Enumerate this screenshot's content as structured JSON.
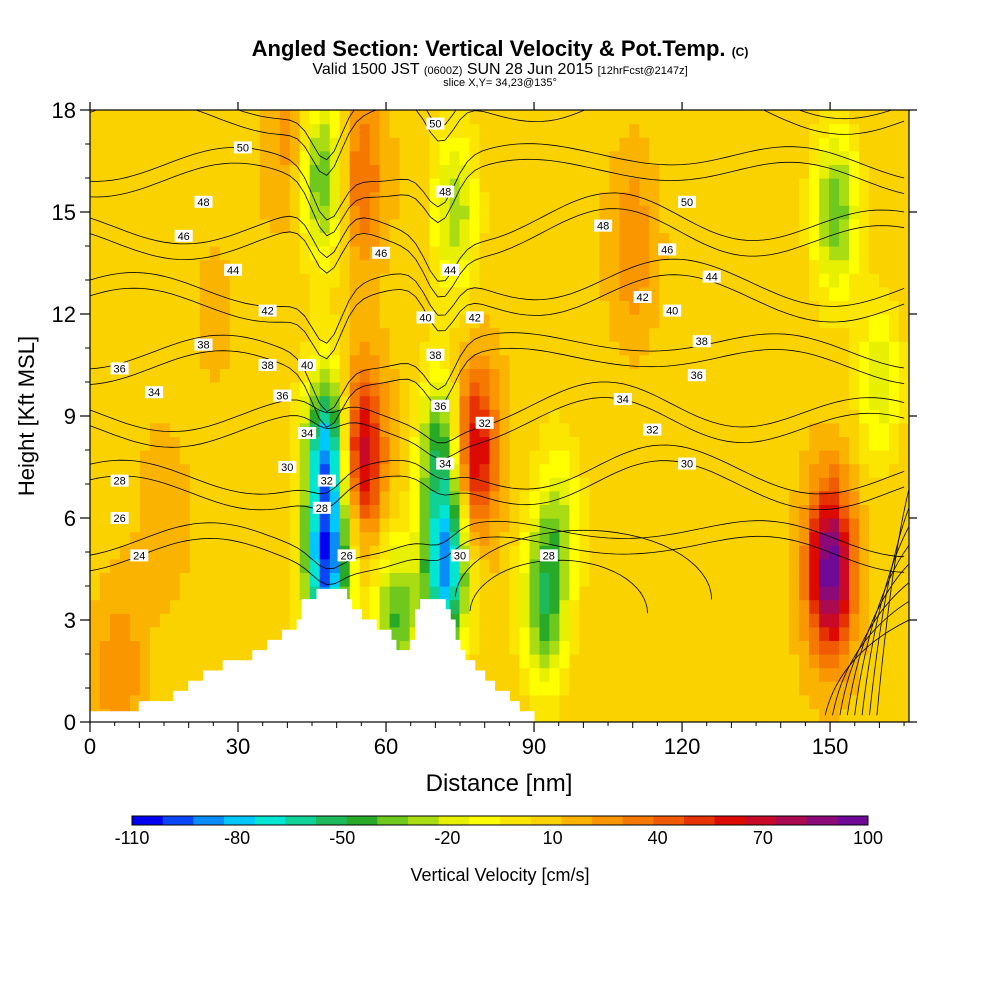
{
  "header": {
    "title": "Angled Section: Vertical Velocity & Pot.Temp.",
    "title_units": "(C)",
    "subtitle_a": "Valid 1500 JST",
    "subtitle_zulu": "(0600Z)",
    "subtitle_b": "SUN 28 Jun 2015",
    "subtitle_fcst": "[12hrFcst@2147z]",
    "slice": "slice X,Y= 34,23@135°"
  },
  "chart_data": {
    "type": "heatmap",
    "title": "Angled Section: Vertical Velocity & Pot.Temp.",
    "xlabel": "Distance [nm]",
    "ylabel": "Height [Kft MSL]",
    "xlim": [
      0,
      166
    ],
    "ylim": [
      0,
      18
    ],
    "x_ticks": [
      "0",
      "30",
      "60",
      "90",
      "120",
      "150"
    ],
    "y_ticks": [
      "0",
      "3",
      "6",
      "9",
      "12",
      "15",
      "18"
    ],
    "colorbar": {
      "label": "Vertical Velocity [cm/s]",
      "tick_labels": [
        "-110",
        "-80",
        "-50",
        "-20",
        "10",
        "40",
        "70",
        "100"
      ],
      "colors": [
        "#0000f0",
        "#0a46f5",
        "#0a8cf8",
        "#00c8ff",
        "#00e6d2",
        "#10d296",
        "#1eb95a",
        "#28aa28",
        "#6ec81e",
        "#aadc14",
        "#e6f000",
        "#ffff00",
        "#fae600",
        "#fad200",
        "#fab400",
        "#fa9600",
        "#f57800",
        "#f05a00",
        "#e63200",
        "#dc0a00",
        "#c80a28",
        "#aa0a50",
        "#8c0a78",
        "#6e0a96"
      ]
    },
    "series": [
      {
        "name": "Vertical Velocity [cm/s]",
        "values": [
          {
            "x": 6,
            "y": 1.5,
            "v": 30
          },
          {
            "x": 15,
            "y": 6,
            "v": 20
          },
          {
            "x": 25,
            "y": 12,
            "v": 15
          },
          {
            "x": 40,
            "y": 17,
            "v": 25
          },
          {
            "x": 47,
            "y": 16,
            "v": -40
          },
          {
            "x": 48,
            "y": 8,
            "v": -80
          },
          {
            "x": 48,
            "y": 4.5,
            "v": -90
          },
          {
            "x": 55,
            "y": 8,
            "v": 75
          },
          {
            "x": 55,
            "y": 16,
            "v": 40
          },
          {
            "x": 62,
            "y": 3,
            "v": -40
          },
          {
            "x": 72,
            "y": 4.5,
            "v": -85
          },
          {
            "x": 71,
            "y": 8,
            "v": -45
          },
          {
            "x": 78,
            "y": 8,
            "v": 70
          },
          {
            "x": 74,
            "y": 15,
            "v": -30
          },
          {
            "x": 92,
            "y": 3.5,
            "v": -45
          },
          {
            "x": 95,
            "y": 6,
            "v": -20
          },
          {
            "x": 110,
            "y": 14,
            "v": 30
          },
          {
            "x": 130,
            "y": 8,
            "v": 10
          },
          {
            "x": 150,
            "y": 4.5,
            "v": 100
          },
          {
            "x": 151,
            "y": 15,
            "v": -40
          },
          {
            "x": 160,
            "y": 10,
            "v": -20
          }
        ]
      },
      {
        "name": "Potential Temperature (C)",
        "contour_levels": [
          24,
          26,
          28,
          30,
          32,
          34,
          36,
          38,
          40,
          42,
          44,
          46,
          48,
          50
        ]
      }
    ],
    "contour_labels": [
      {
        "text": "50",
        "x": 31,
        "y": 16.9
      },
      {
        "text": "48",
        "x": 23,
        "y": 15.3
      },
      {
        "text": "46",
        "x": 19,
        "y": 14.3
      },
      {
        "text": "44",
        "x": 29,
        "y": 13.3
      },
      {
        "text": "42",
        "x": 36,
        "y": 12.1
      },
      {
        "text": "38",
        "x": 23,
        "y": 11.1
      },
      {
        "text": "36",
        "x": 6,
        "y": 10.4
      },
      {
        "text": "34",
        "x": 13,
        "y": 9.7
      },
      {
        "text": "38",
        "x": 36,
        "y": 10.5
      },
      {
        "text": "40",
        "x": 44,
        "y": 10.5
      },
      {
        "text": "36",
        "x": 39,
        "y": 9.6
      },
      {
        "text": "34",
        "x": 44,
        "y": 8.5
      },
      {
        "text": "30",
        "x": 40,
        "y": 7.5
      },
      {
        "text": "32",
        "x": 48,
        "y": 7.1
      },
      {
        "text": "28",
        "x": 47,
        "y": 6.3
      },
      {
        "text": "28",
        "x": 6,
        "y": 7.1
      },
      {
        "text": "26",
        "x": 6,
        "y": 6
      },
      {
        "text": "24",
        "x": 10,
        "y": 4.9
      },
      {
        "text": "26",
        "x": 52,
        "y": 4.9
      },
      {
        "text": "50",
        "x": 70,
        "y": 17.6
      },
      {
        "text": "48",
        "x": 72,
        "y": 15.6
      },
      {
        "text": "46",
        "x": 59,
        "y": 13.8
      },
      {
        "text": "44",
        "x": 73,
        "y": 13.3
      },
      {
        "text": "40",
        "x": 68,
        "y": 11.9
      },
      {
        "text": "42",
        "x": 78,
        "y": 11.9
      },
      {
        "text": "38",
        "x": 70,
        "y": 10.8
      },
      {
        "text": "36",
        "x": 71,
        "y": 9.3
      },
      {
        "text": "32",
        "x": 80,
        "y": 8.8
      },
      {
        "text": "34",
        "x": 72,
        "y": 7.6
      },
      {
        "text": "30",
        "x": 75,
        "y": 4.9
      },
      {
        "text": "28",
        "x": 93,
        "y": 4.9
      },
      {
        "text": "50",
        "x": 121,
        "y": 15.3
      },
      {
        "text": "48",
        "x": 104,
        "y": 14.6
      },
      {
        "text": "46",
        "x": 117,
        "y": 13.9
      },
      {
        "text": "44",
        "x": 126,
        "y": 13.1
      },
      {
        "text": "42",
        "x": 112,
        "y": 12.5
      },
      {
        "text": "40",
        "x": 118,
        "y": 12.1
      },
      {
        "text": "38",
        "x": 124,
        "y": 11.2
      },
      {
        "text": "36",
        "x": 123,
        "y": 10.2
      },
      {
        "text": "34",
        "x": 108,
        "y": 9.5
      },
      {
        "text": "32",
        "x": 114,
        "y": 8.6
      },
      {
        "text": "30",
        "x": 121,
        "y": 7.6
      }
    ],
    "terrain": [
      [
        0,
        0.3
      ],
      [
        10,
        0.3
      ],
      [
        10,
        0.6
      ],
      [
        17,
        0.6
      ],
      [
        17,
        0.9
      ],
      [
        20,
        0.9
      ],
      [
        20,
        1.2
      ],
      [
        23,
        1.2
      ],
      [
        23,
        1.5
      ],
      [
        27,
        1.5
      ],
      [
        27,
        1.8
      ],
      [
        33,
        1.8
      ],
      [
        33,
        2.1
      ],
      [
        36,
        2.1
      ],
      [
        36,
        2.4
      ],
      [
        39,
        2.4
      ],
      [
        39,
        2.7
      ],
      [
        42,
        2.7
      ],
      [
        42,
        3
      ],
      [
        43,
        3
      ],
      [
        43,
        3.3
      ],
      [
        43,
        3.6
      ],
      [
        46,
        3.6
      ],
      [
        46,
        3.9
      ],
      [
        52,
        3.9
      ],
      [
        52,
        3.6
      ],
      [
        53,
        3.6
      ],
      [
        53,
        3.3
      ],
      [
        55,
        3.3
      ],
      [
        55,
        3
      ],
      [
        58,
        3
      ],
      [
        58,
        2.7
      ],
      [
        61,
        2.7
      ],
      [
        61,
        2.4
      ],
      [
        62,
        2.4
      ],
      [
        62,
        2.1
      ],
      [
        65,
        2.1
      ],
      [
        65,
        2.4
      ],
      [
        66,
        2.4
      ],
      [
        66,
        3
      ],
      [
        66,
        3.3
      ],
      [
        67,
        3.3
      ],
      [
        67,
        3.6
      ],
      [
        72,
        3.6
      ],
      [
        72,
        3.3
      ],
      [
        73,
        3.3
      ],
      [
        73,
        3
      ],
      [
        74,
        3
      ],
      [
        74,
        2.4
      ],
      [
        75,
        2.4
      ],
      [
        75,
        2.1
      ],
      [
        76,
        2.1
      ],
      [
        76,
        1.8
      ],
      [
        78,
        1.8
      ],
      [
        78,
        1.5
      ],
      [
        80,
        1.5
      ],
      [
        80,
        1.2
      ],
      [
        82,
        1.2
      ],
      [
        82,
        0.9
      ],
      [
        85,
        0.9
      ],
      [
        85,
        0.6
      ],
      [
        87,
        0.6
      ],
      [
        87,
        0.3
      ],
      [
        90,
        0.3
      ]
    ],
    "grid": false
  }
}
